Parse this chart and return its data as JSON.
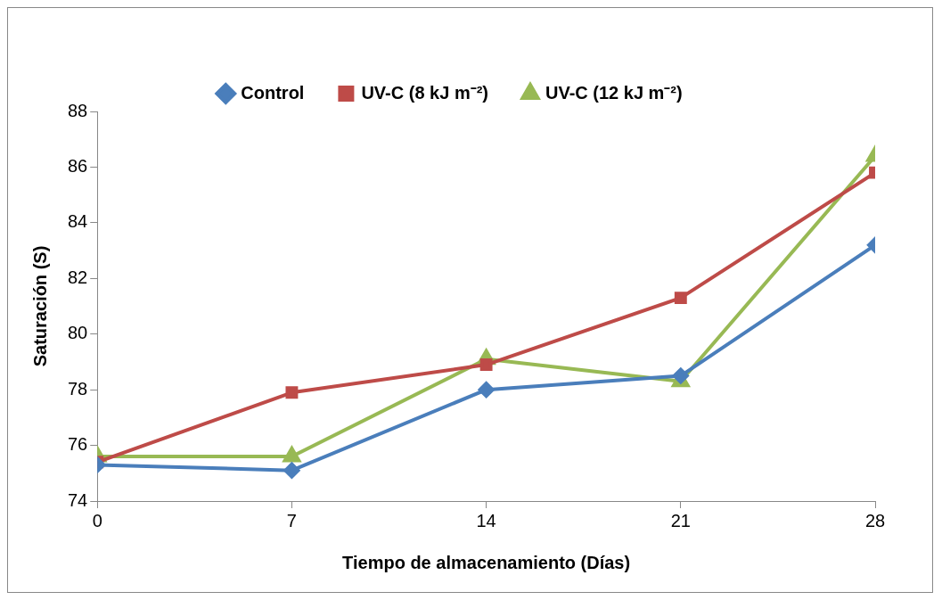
{
  "chart_data": {
    "type": "line",
    "xlabel": "Tiempo de almacenamiento (Días)",
    "ylabel": "Saturación (S)",
    "x": [
      0,
      7,
      14,
      21,
      28
    ],
    "xlim": [
      0,
      28
    ],
    "xticks": [
      0,
      7,
      14,
      21,
      28
    ],
    "ylim": [
      74,
      88
    ],
    "yticks": [
      74,
      76,
      78,
      80,
      82,
      84,
      86,
      88
    ],
    "grid": false,
    "legend": "top",
    "line_style": "solid",
    "series": [
      {
        "name": "Control",
        "color": "#4a7ebb",
        "marker": "diamond",
        "values": [
          75.3,
          75.1,
          78.0,
          78.5,
          83.2
        ]
      },
      {
        "name": "UV-C (8 kJ m⁻²)",
        "color": "#be4b48",
        "marker": "square",
        "values": [
          75.4,
          77.9,
          78.9,
          81.3,
          85.8
        ]
      },
      {
        "name": "UV-C (12 kJ m⁻²)",
        "color": "#98b954",
        "marker": "triangle",
        "values": [
          75.6,
          75.6,
          79.1,
          78.3,
          86.4
        ]
      }
    ]
  }
}
